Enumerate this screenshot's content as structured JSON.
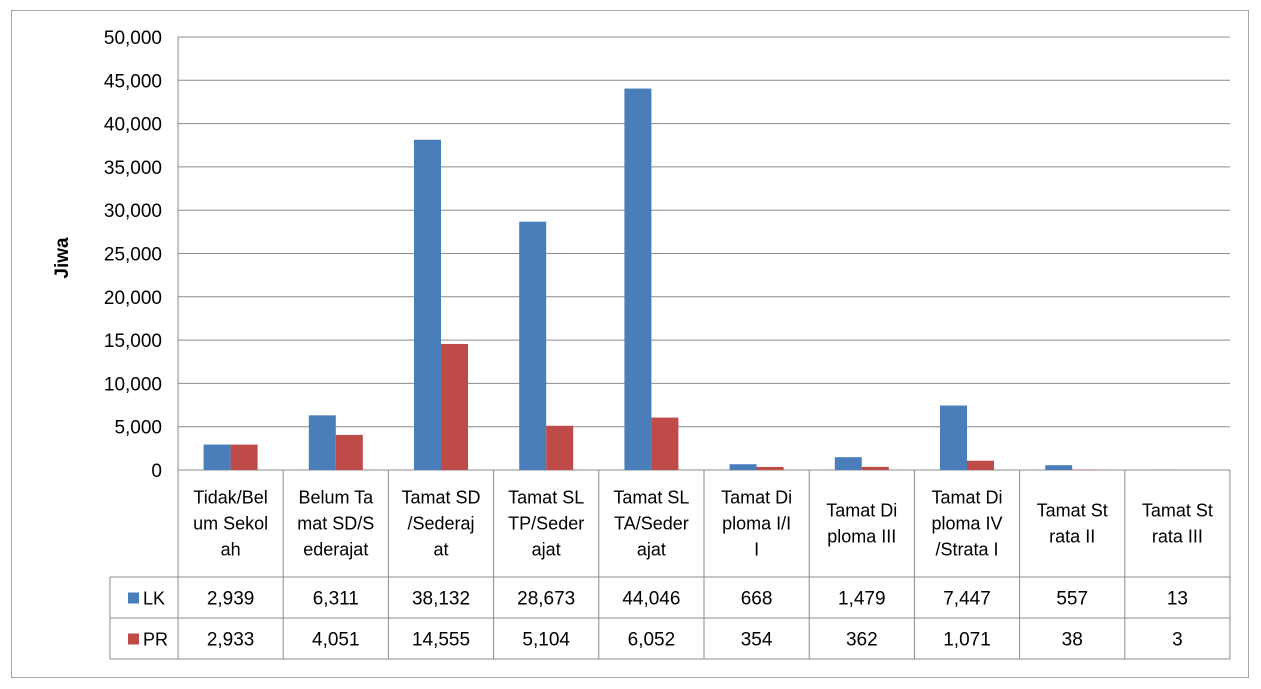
{
  "chart_data": {
    "type": "bar",
    "ylabel": "Jiwa",
    "ylim": [
      0,
      50000
    ],
    "yticks": [
      "0",
      "5,000",
      "10,000",
      "15,000",
      "20,000",
      "25,000",
      "30,000",
      "35,000",
      "40,000",
      "45,000",
      "50,000"
    ],
    "grid": true,
    "legend": "data-table",
    "categories": [
      [
        "Tidak/Bel",
        "um Sekol",
        "ah"
      ],
      [
        "Belum Ta",
        "mat SD/S",
        "ederajat"
      ],
      [
        "Tamat SD",
        "/Sederaj",
        "at"
      ],
      [
        "Tamat SL",
        "TP/Seder",
        "ajat"
      ],
      [
        "Tamat SL",
        "TA/Seder",
        "ajat"
      ],
      [
        "Tamat Di",
        "ploma I/I",
        "I"
      ],
      [
        "Tamat Di",
        "ploma III"
      ],
      [
        "Tamat Di",
        "ploma IV",
        "/Strata I"
      ],
      [
        "Tamat St",
        "rata II"
      ],
      [
        "Tamat St",
        "rata III"
      ]
    ],
    "series": [
      {
        "name": "LK",
        "color": "#4a7ebb",
        "values": [
          2939,
          6311,
          38132,
          28673,
          44046,
          668,
          1479,
          7447,
          557,
          13
        ],
        "labels": [
          "2,939",
          "6,311",
          "38,132",
          "28,673",
          "44,046",
          "668",
          "1,479",
          "7,447",
          "557",
          "13"
        ]
      },
      {
        "name": "PR",
        "color": "#be4b48",
        "values": [
          2933,
          4051,
          14555,
          5104,
          6052,
          354,
          362,
          1071,
          38,
          3
        ],
        "labels": [
          "2,933",
          "4,051",
          "14,555",
          "5,104",
          "6,052",
          "354",
          "362",
          "1,071",
          "38",
          "3"
        ]
      }
    ]
  }
}
